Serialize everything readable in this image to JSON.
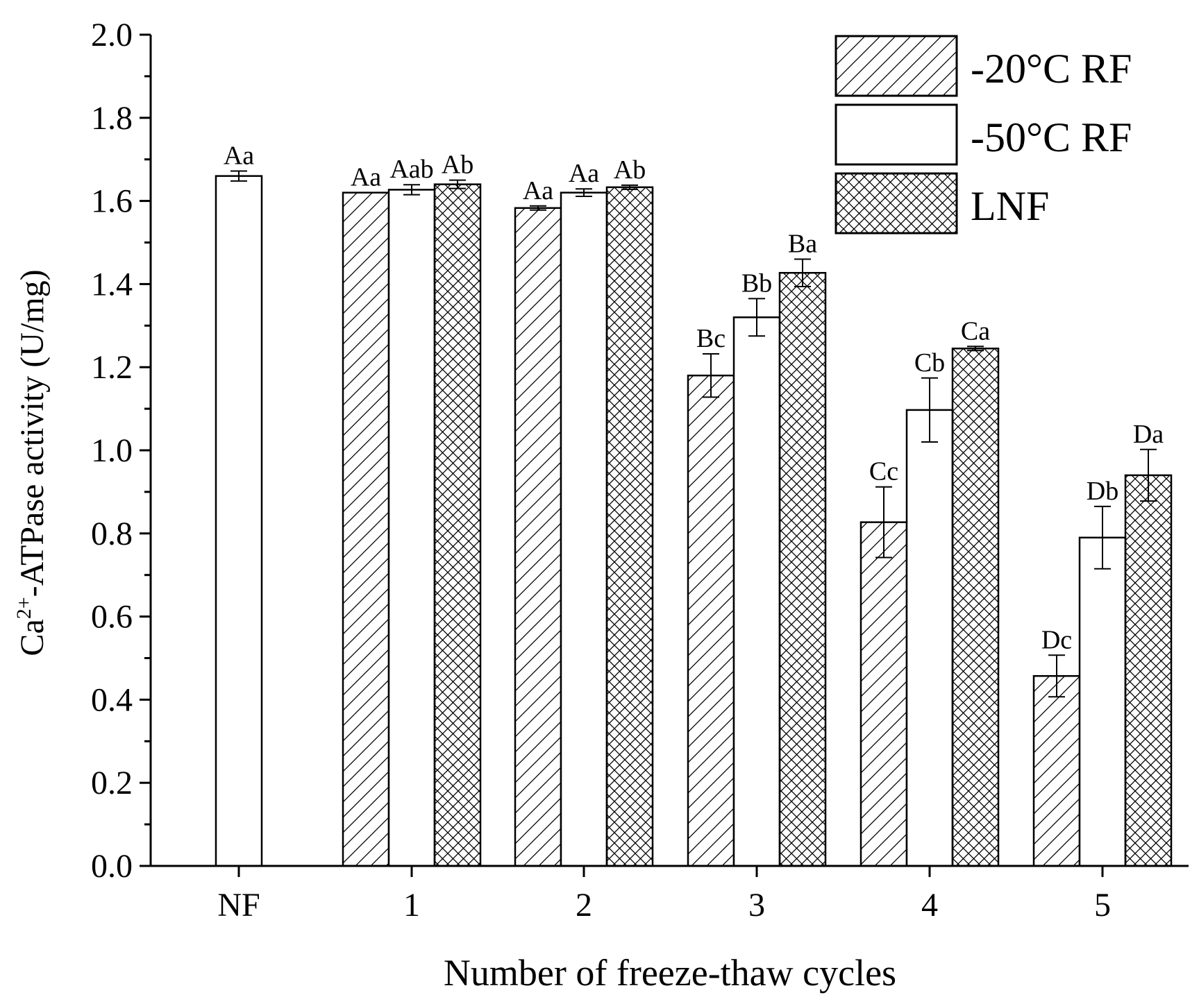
{
  "chart_data": {
    "type": "bar",
    "title": "",
    "xlabel": "Number of freeze-thaw cycles",
    "ylabel_main": "Ca",
    "ylabel_sup": "2+",
    "ylabel_rest": "-ATPase activity (U/mg)",
    "ylim": [
      0,
      2.0
    ],
    "yticks": [
      "0.0",
      "0.2",
      "0.4",
      "0.6",
      "0.8",
      "1.0",
      "1.2",
      "1.4",
      "1.6",
      "1.8",
      "2.0"
    ],
    "categories": [
      "NF",
      "1",
      "2",
      "3",
      "4",
      "5"
    ],
    "control": {
      "name": "NF",
      "category": "NF",
      "value": 1.66,
      "error": 0.012,
      "label": "Aa"
    },
    "series": [
      {
        "name": "-20°C RF",
        "pattern": "hatch",
        "values": [
          null,
          1.62,
          1.583,
          1.18,
          0.827,
          0.457
        ],
        "errors": [
          null,
          0,
          0.005,
          0.052,
          0.085,
          0.05
        ],
        "labels": [
          "",
          "Aa",
          "Aa",
          "Bc",
          "Cc",
          "Dc"
        ]
      },
      {
        "name": "-50°C RF",
        "pattern": "none",
        "values": [
          null,
          1.627,
          1.62,
          1.32,
          1.097,
          0.79
        ],
        "errors": [
          null,
          0.012,
          0.009,
          0.045,
          0.077,
          0.075
        ],
        "labels": [
          "",
          "Aab",
          "Aa",
          "Bb",
          "Cb",
          "Db"
        ]
      },
      {
        "name": "LNF",
        "pattern": "crosshatch",
        "values": [
          null,
          1.64,
          1.633,
          1.427,
          1.245,
          0.94
        ],
        "errors": [
          null,
          0.01,
          0.005,
          0.033,
          0.005,
          0.062
        ],
        "labels": [
          "",
          "Ab",
          "Ab",
          "Ba",
          "Ca",
          "Da"
        ]
      }
    ],
    "legend": {
      "position": "top-right",
      "entries": [
        "-20°C RF",
        "-50°C RF",
        "LNF"
      ]
    },
    "colors": {
      "bar_fill": "#ffffff",
      "stroke": "#000000",
      "background": "#ffffff"
    }
  }
}
